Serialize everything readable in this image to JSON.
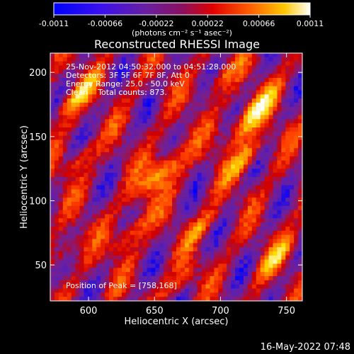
{
  "chart_data": {
    "type": "heatmap",
    "title": "Reconstructed RHESSI Image",
    "xlabel": "Heliocentric X (arcsec)",
    "ylabel": "Heliocentric Y (arcsec)",
    "xlim": [
      571,
      762
    ],
    "ylim": [
      22,
      215
    ],
    "x_ticks": [
      {
        "value": 600,
        "label": "600"
      },
      {
        "value": 650,
        "label": "650"
      },
      {
        "value": 700,
        "label": "700"
      },
      {
        "value": 750,
        "label": "750"
      }
    ],
    "y_ticks": [
      {
        "value": 50,
        "label": "50"
      },
      {
        "value": 100,
        "label": "100"
      },
      {
        "value": 150,
        "label": "150"
      },
      {
        "value": 200,
        "label": "200"
      }
    ],
    "colorbar": {
      "range": [
        -0.0011,
        0.0011
      ],
      "ticks": [
        {
          "value": -0.0011,
          "label": "-0.0011"
        },
        {
          "value": -0.00066,
          "label": "-0.00066"
        },
        {
          "value": -0.00022,
          "label": "-0.00022"
        },
        {
          "value": 0.00022,
          "label": "0.00022"
        },
        {
          "value": 0.00066,
          "label": "0.00066"
        },
        {
          "value": 0.0011,
          "label": "0.0011"
        }
      ],
      "unit_label": "(photons cm⁻² s⁻¹ asec⁻²)",
      "colors": [
        "#0000ff",
        "#5a1fb4",
        "#7a1f8a",
        "#d00000",
        "#ff4000",
        "#ff9a00",
        "#ffe000",
        "#ffffff"
      ]
    },
    "annotations": [
      "25-Nov-2012 04:50:32.000 to 04:51:28.000",
      "Detectors: 3F 5F 6F 7F 8F, Att 0",
      "Energy Range: 25.0 - 50.0 keV",
      "Clean    Total counts: 873."
    ],
    "peak_label": "Position of Peak = [758,168]",
    "peak": {
      "x": 758,
      "y": 168
    }
  },
  "footer": {
    "timestamp": "16-May-2022 07:48"
  }
}
